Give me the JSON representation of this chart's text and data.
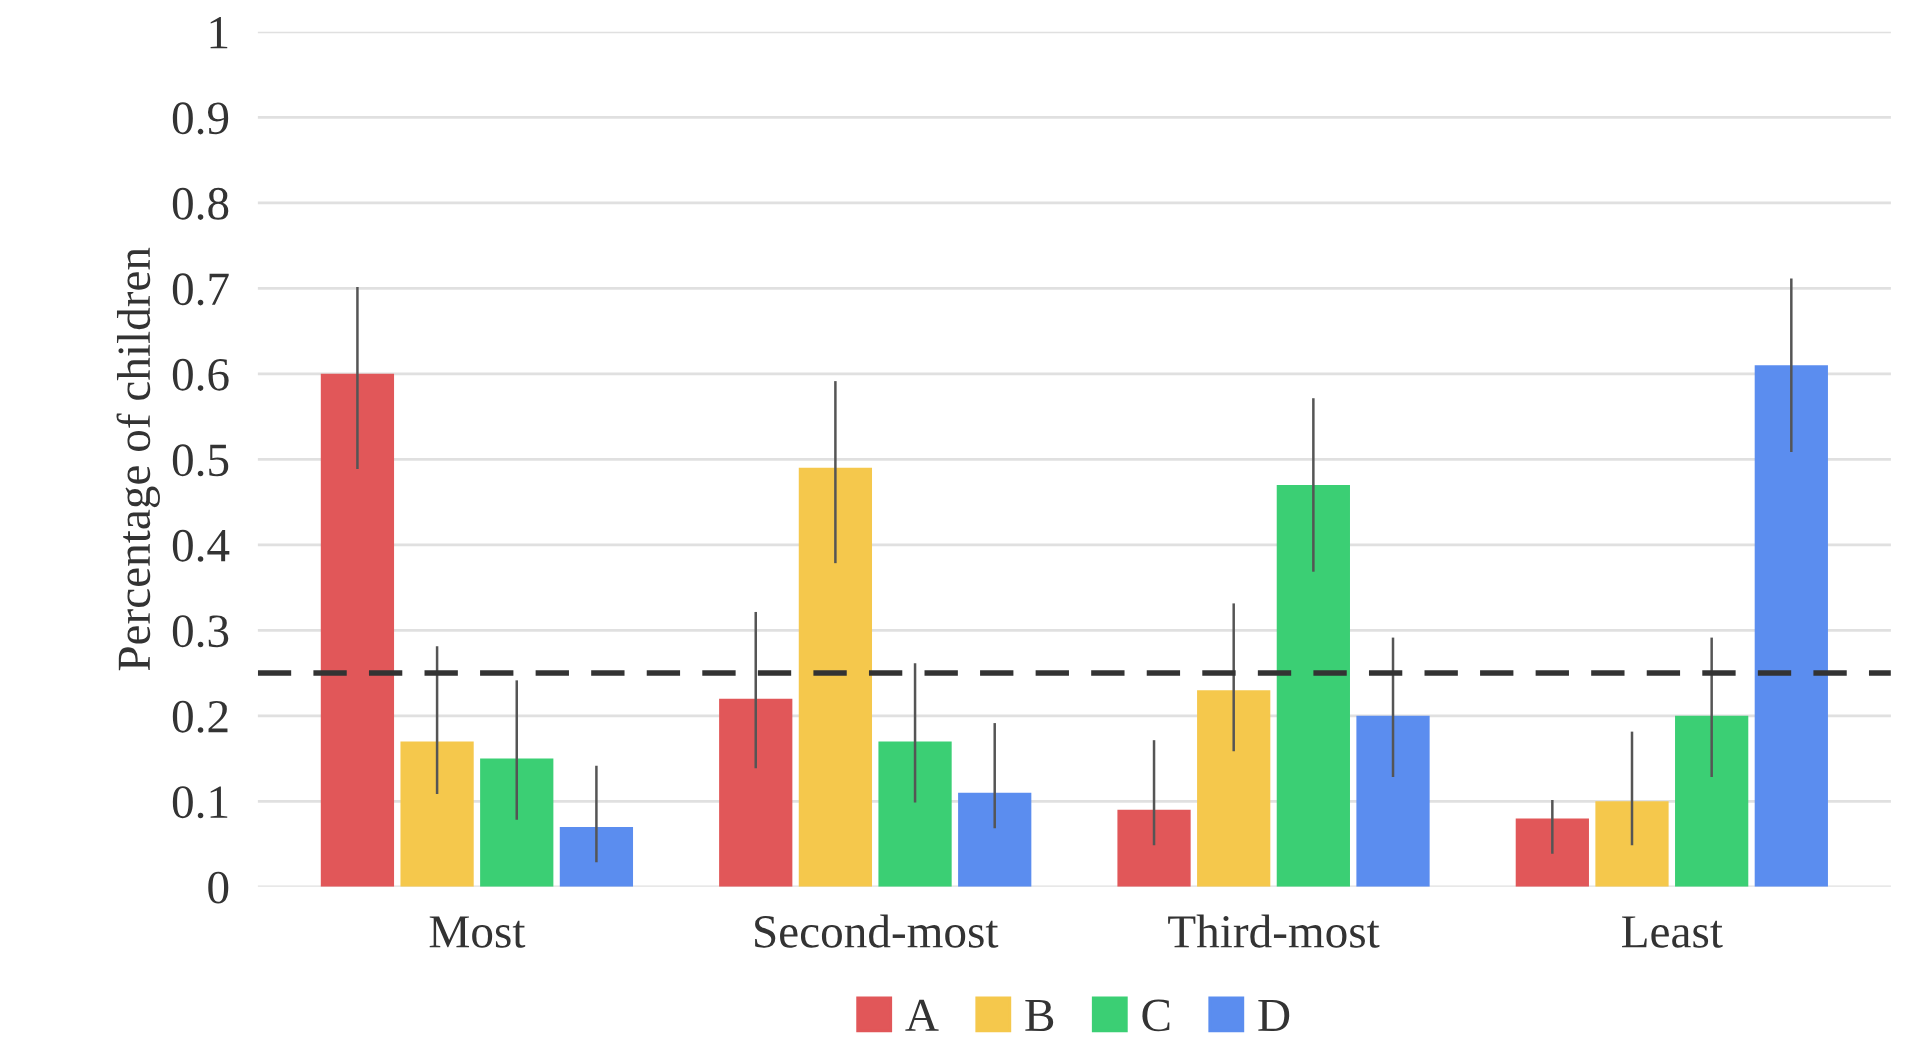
{
  "chart_data": {
    "type": "bar",
    "ylabel": "Percentage of children",
    "categories": [
      "Most",
      "Second-most",
      "Third-most",
      "Least"
    ],
    "series": [
      {
        "name": "A",
        "color": "#e15759",
        "values": [
          0.6,
          0.22,
          0.09,
          0.08
        ],
        "errors": [
          [
            0.49,
            0.7
          ],
          [
            0.14,
            0.32
          ],
          [
            0.05,
            0.17
          ],
          [
            0.04,
            0.1
          ]
        ]
      },
      {
        "name": "B",
        "color": "#f5c84c",
        "values": [
          0.17,
          0.49,
          0.23,
          0.1
        ],
        "errors": [
          [
            0.11,
            0.28
          ],
          [
            0.38,
            0.59
          ],
          [
            0.16,
            0.33
          ],
          [
            0.05,
            0.18
          ]
        ]
      },
      {
        "name": "C",
        "color": "#3bcf74",
        "values": [
          0.15,
          0.17,
          0.47,
          0.2
        ],
        "errors": [
          [
            0.08,
            0.24
          ],
          [
            0.1,
            0.26
          ],
          [
            0.37,
            0.57
          ],
          [
            0.13,
            0.29
          ]
        ]
      },
      {
        "name": "D",
        "color": "#5b8def",
        "values": [
          0.07,
          0.11,
          0.2,
          0.61
        ],
        "errors": [
          [
            0.03,
            0.14
          ],
          [
            0.07,
            0.19
          ],
          [
            0.13,
            0.29
          ],
          [
            0.51,
            0.71
          ]
        ]
      }
    ],
    "ylim": [
      0,
      1
    ],
    "yticks": [
      0,
      0.1,
      0.2,
      0.3,
      0.4,
      0.5,
      0.6,
      0.7,
      0.8,
      0.9,
      1
    ],
    "ref_lines": [
      {
        "axis": "y",
        "value": 0.25,
        "color": "#333333",
        "line_style": "dashed"
      }
    ],
    "grid": "y",
    "legend": "bottom"
  }
}
